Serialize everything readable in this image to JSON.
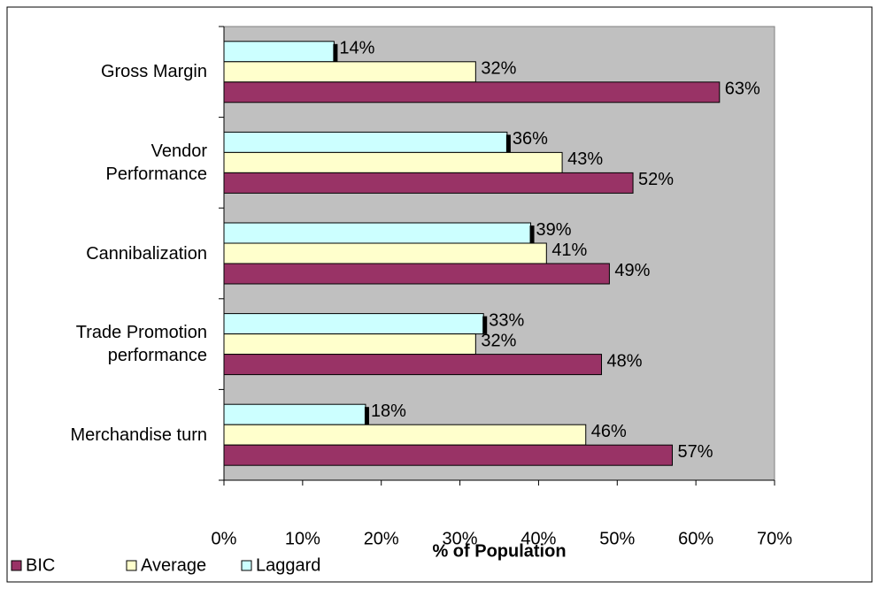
{
  "chart_data": {
    "type": "hbar",
    "categories": [
      "Gross Margin",
      "Vendor\nPerformance",
      "Cannibalization",
      "Trade Promotion\nperformance",
      "Merchandise turn"
    ],
    "series": [
      {
        "name": "BIC",
        "color": "#993366",
        "values": [
          63,
          52,
          49,
          48,
          57
        ],
        "value_labels": [
          "63%",
          "52%",
          "49%",
          "48%",
          "57%"
        ]
      },
      {
        "name": "Average",
        "color": "#ffffcc",
        "values": [
          32,
          43,
          41,
          32,
          46
        ],
        "value_labels": [
          "32%",
          "43%",
          "41%",
          "32%",
          "46%"
        ]
      },
      {
        "name": "Laggard",
        "color": "#ccffff",
        "values": [
          14,
          36,
          39,
          33,
          18
        ],
        "value_labels": [
          "14%",
          "36%",
          "39%",
          "33%",
          "18%"
        ]
      }
    ],
    "xlabel": "% of Population",
    "xlim": [
      0,
      70
    ],
    "xticks": [
      {
        "value": 0,
        "label": "0%"
      },
      {
        "value": 10,
        "label": "10%"
      },
      {
        "value": 20,
        "label": "20%"
      },
      {
        "value": 30,
        "label": "30%"
      },
      {
        "value": 40,
        "label": "40%"
      },
      {
        "value": 50,
        "label": "50%"
      },
      {
        "value": 60,
        "label": "60%"
      },
      {
        "value": 70,
        "label": "70%"
      }
    ],
    "plot_background": "#c0c0c0",
    "legend": "bottom-left"
  }
}
